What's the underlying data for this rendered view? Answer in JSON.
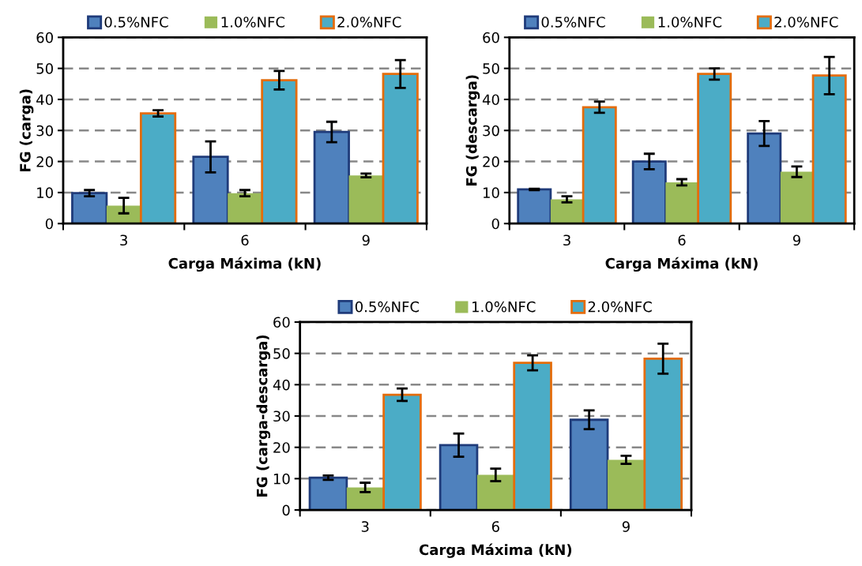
{
  "chart_data": [
    {
      "type": "bar",
      "xlabel": "Carga Máxima (kN)",
      "ylabel": "FG (carga)",
      "categories": [
        "3",
        "6",
        "9"
      ],
      "ylim": [
        0,
        60
      ],
      "yticks": [
        0,
        10,
        20,
        30,
        40,
        50,
        60
      ],
      "grid": "y",
      "legend": "top",
      "series": [
        {
          "name": "0.5%NFC",
          "color": "#4f81bd",
          "values": [
            9.8,
            21.5,
            29.5
          ],
          "errors": [
            1,
            5,
            3.3
          ]
        },
        {
          "name": "1.0%NFC",
          "color": "#9bbb59",
          "values": [
            5.8,
            9.8,
            15.5
          ],
          "errors": [
            2.5,
            1,
            0.6
          ]
        },
        {
          "name": "2.0%NFC",
          "color": "#4bacc6",
          "values": [
            35.5,
            46.2,
            48.2
          ],
          "errors": [
            1,
            3,
            4.5
          ]
        }
      ]
    },
    {
      "type": "bar",
      "xlabel": "Carga Máxima (kN)",
      "ylabel": "FG (descarga)",
      "categories": [
        "3",
        "6",
        "9"
      ],
      "ylim": [
        0,
        60
      ],
      "yticks": [
        0,
        10,
        20,
        30,
        40,
        50,
        60
      ],
      "grid": "y",
      "legend": "top",
      "series": [
        {
          "name": "0.5%NFC",
          "color": "#4f81bd",
          "values": [
            11,
            20,
            29
          ],
          "errors": [
            0.2,
            2.5,
            4
          ]
        },
        {
          "name": "1.0%NFC",
          "color": "#9bbb59",
          "values": [
            7.8,
            13.3,
            16.7
          ],
          "errors": [
            1,
            1,
            1.7
          ]
        },
        {
          "name": "2.0%NFC",
          "color": "#4bacc6",
          "values": [
            37.5,
            48.2,
            47.7
          ],
          "errors": [
            1.8,
            1.8,
            6
          ]
        }
      ]
    },
    {
      "type": "bar",
      "xlabel": "Carga Máxima (kN)",
      "ylabel": "FG (carga-descarga)",
      "categories": [
        "3",
        "6",
        "9"
      ],
      "ylim": [
        0,
        60
      ],
      "yticks": [
        0,
        10,
        20,
        30,
        40,
        50,
        60
      ],
      "grid": "y",
      "legend": "top",
      "series": [
        {
          "name": "0.5%NFC",
          "color": "#4f81bd",
          "values": [
            10.3,
            20.7,
            28.8
          ],
          "errors": [
            0.7,
            3.7,
            3
          ]
        },
        {
          "name": "1.0%NFC",
          "color": "#9bbb59",
          "values": [
            7.2,
            11.2,
            16
          ],
          "errors": [
            1.5,
            2,
            1.3
          ]
        },
        {
          "name": "2.0%NFC",
          "color": "#4bacc6",
          "values": [
            36.8,
            47,
            48.3
          ],
          "errors": [
            2,
            2.4,
            4.8
          ]
        }
      ]
    }
  ]
}
